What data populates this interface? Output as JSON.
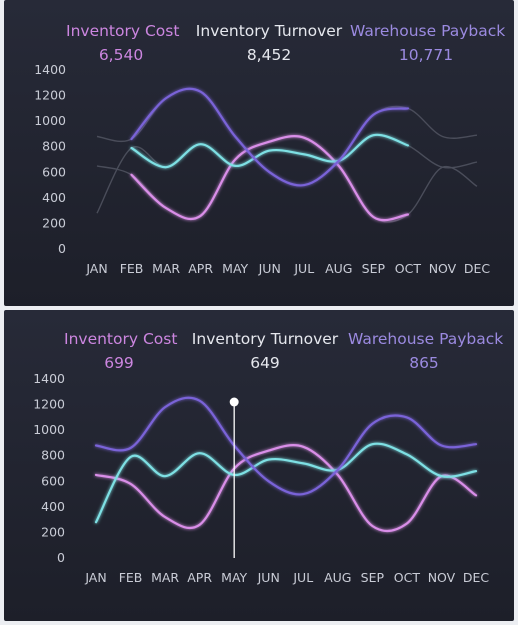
{
  "colors": {
    "inventory_cost": "#d98ee8",
    "inventory_turnover": "#7ee0e4",
    "warehouse_payback": "#7a63d8",
    "kpi_cost_text": "#cc86e0",
    "kpi_turnover_text": "#e6e8ee",
    "kpi_payback_text": "#9b8ae0",
    "context_line": "#4a4d5a",
    "marker": "#ffffff"
  },
  "chart_data": [
    {
      "type": "line",
      "kpis": [
        {
          "label": "Inventory Cost",
          "value": "6,540"
        },
        {
          "label": "Inventory Turnover",
          "value": "8,452"
        },
        {
          "label": "Warehouse Payback",
          "value": "10,771"
        }
      ],
      "categories": [
        "JAN",
        "FEB",
        "MAR",
        "APR",
        "MAY",
        "JUN",
        "JUL",
        "AUG",
        "SEP",
        "OCT",
        "NOV",
        "DEC"
      ],
      "ylim": [
        0,
        1400
      ],
      "yticks": [
        0,
        200,
        400,
        600,
        800,
        1000,
        1200,
        1400
      ],
      "grid": false,
      "highlight_range": [
        "FEB",
        "OCT"
      ],
      "series": [
        {
          "name": "Inventory Cost",
          "values": [
            650,
            580,
            320,
            260,
            700,
            840,
            870,
            650,
            250,
            270,
            640,
            490
          ]
        },
        {
          "name": "Inventory Turnover",
          "values": [
            280,
            790,
            640,
            820,
            650,
            770,
            740,
            690,
            890,
            810,
            640,
            680
          ]
        },
        {
          "name": "Warehouse Payback",
          "values": [
            880,
            860,
            1180,
            1230,
            880,
            600,
            500,
            690,
            1050,
            1100,
            880,
            890
          ]
        }
      ]
    },
    {
      "type": "line",
      "kpis": [
        {
          "label": "Inventory Cost",
          "value": "699"
        },
        {
          "label": "Inventory Turnover",
          "value": "649"
        },
        {
          "label": "Warehouse Payback",
          "value": "865"
        }
      ],
      "categories": [
        "JAN",
        "FEB",
        "MAR",
        "APR",
        "MAY",
        "JUN",
        "JUL",
        "AUG",
        "SEP",
        "OCT",
        "NOV",
        "DEC"
      ],
      "ylim": [
        0,
        1400
      ],
      "yticks": [
        0,
        200,
        400,
        600,
        800,
        1000,
        1200,
        1400
      ],
      "grid": false,
      "marker_category": "MAY",
      "series": [
        {
          "name": "Inventory Cost",
          "values": [
            650,
            580,
            320,
            260,
            700,
            840,
            870,
            650,
            250,
            270,
            640,
            490
          ]
        },
        {
          "name": "Inventory Turnover",
          "values": [
            280,
            790,
            640,
            820,
            650,
            770,
            740,
            690,
            890,
            810,
            640,
            680
          ]
        },
        {
          "name": "Warehouse Payback",
          "values": [
            880,
            860,
            1180,
            1230,
            880,
            600,
            500,
            690,
            1050,
            1100,
            880,
            890
          ]
        }
      ]
    }
  ]
}
